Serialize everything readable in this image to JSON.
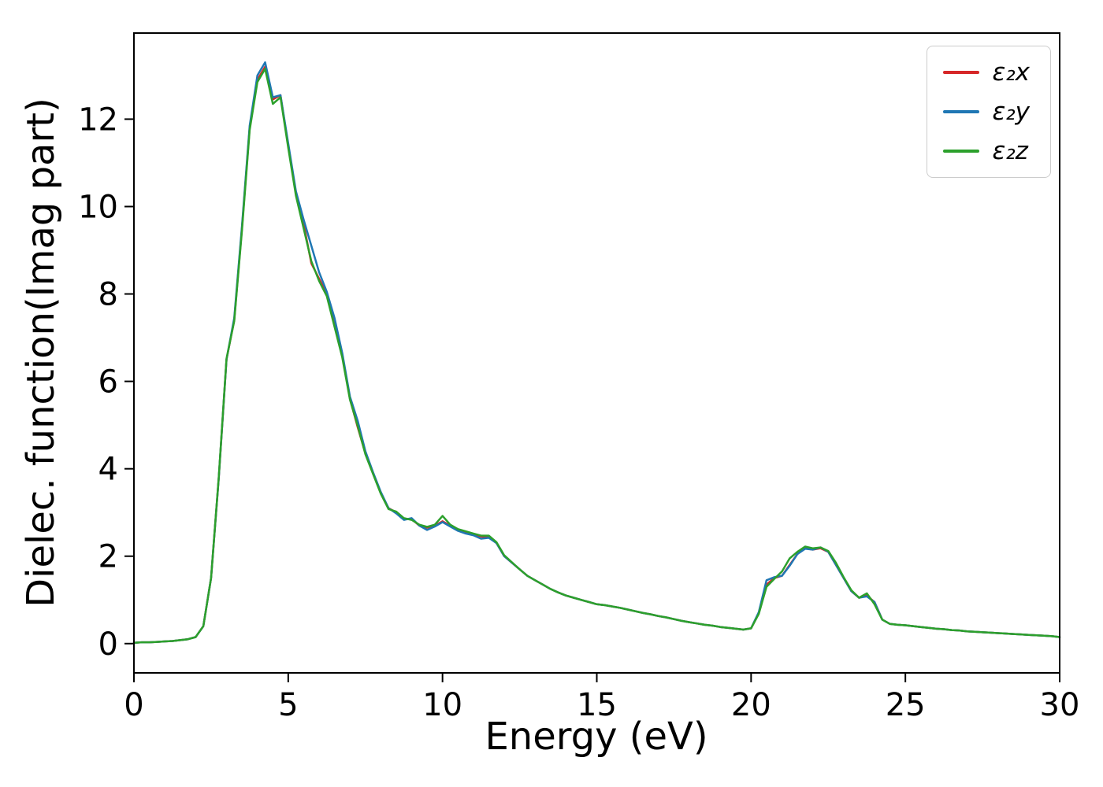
{
  "figure": {
    "background": "#ffffff",
    "spine_color": "#000000",
    "tick_color": "#000000"
  },
  "legend": {
    "position": "upper right",
    "border_color": "#cccccc"
  },
  "chart_data": {
    "type": "line",
    "title": "",
    "xlabel": "Energy (eV)",
    "ylabel": "Dielec. function(Imag part)",
    "xlim": [
      0,
      30
    ],
    "ylim": [
      -0.67,
      13.97
    ],
    "xticks": [
      0,
      5,
      10,
      15,
      20,
      25,
      30
    ],
    "yticks": [
      0,
      2,
      4,
      6,
      8,
      10,
      12
    ],
    "grid": false,
    "legend_position": "upper right",
    "x": [
      0,
      0.25,
      0.5,
      0.75,
      1,
      1.25,
      1.5,
      1.75,
      2,
      2.25,
      2.5,
      2.75,
      3,
      3.25,
      3.5,
      3.75,
      4,
      4.25,
      4.5,
      4.75,
      5,
      5.25,
      5.5,
      5.75,
      6,
      6.25,
      6.5,
      6.75,
      7,
      7.25,
      7.5,
      7.75,
      8,
      8.25,
      8.5,
      8.75,
      9,
      9.25,
      9.5,
      9.75,
      10,
      10.25,
      10.5,
      10.75,
      11,
      11.25,
      11.5,
      11.75,
      12,
      12.25,
      12.5,
      12.75,
      13,
      13.25,
      13.5,
      13.75,
      14,
      14.25,
      14.5,
      14.75,
      15,
      15.25,
      15.5,
      15.75,
      16,
      16.25,
      16.5,
      16.75,
      17,
      17.25,
      17.5,
      17.75,
      18,
      18.25,
      18.5,
      18.75,
      19,
      19.25,
      19.5,
      19.75,
      20,
      20.25,
      20.5,
      20.75,
      21,
      21.25,
      21.5,
      21.75,
      22,
      22.25,
      22.5,
      22.75,
      23,
      23.25,
      23.5,
      23.75,
      24,
      24.25,
      24.5,
      24.75,
      25,
      25.25,
      25.5,
      25.75,
      26,
      26.25,
      26.5,
      26.75,
      27,
      27.25,
      27.5,
      27.75,
      28,
      28.25,
      28.5,
      28.75,
      29,
      29.25,
      29.5,
      29.75,
      30
    ],
    "series": [
      {
        "name": "ε₂x",
        "color": "#d62728",
        "values": [
          0.02,
          0.03,
          0.03,
          0.04,
          0.05,
          0.06,
          0.08,
          0.1,
          0.15,
          0.4,
          1.5,
          3.8,
          6.5,
          7.4,
          9.5,
          11.8,
          12.9,
          13.2,
          12.45,
          12.55,
          11.4,
          10.3,
          9.6,
          8.7,
          8.35,
          8.0,
          7.4,
          6.6,
          5.6,
          4.95,
          4.35,
          3.9,
          3.45,
          3.1,
          3.0,
          2.85,
          2.85,
          2.7,
          2.65,
          2.7,
          2.8,
          2.7,
          2.6,
          2.55,
          2.5,
          2.45,
          2.45,
          2.3,
          2.0,
          1.85,
          1.7,
          1.55,
          1.45,
          1.35,
          1.25,
          1.17,
          1.1,
          1.05,
          1.0,
          0.95,
          0.9,
          0.88,
          0.85,
          0.82,
          0.78,
          0.74,
          0.7,
          0.67,
          0.63,
          0.6,
          0.56,
          0.52,
          0.49,
          0.46,
          0.43,
          0.41,
          0.38,
          0.36,
          0.34,
          0.32,
          0.35,
          0.7,
          1.35,
          1.5,
          1.55,
          1.8,
          2.05,
          2.18,
          2.15,
          2.18,
          2.1,
          1.8,
          1.5,
          1.2,
          1.05,
          1.1,
          0.95,
          0.55,
          0.45,
          0.43,
          0.42,
          0.4,
          0.38,
          0.36,
          0.34,
          0.33,
          0.31,
          0.3,
          0.28,
          0.27,
          0.26,
          0.25,
          0.24,
          0.23,
          0.22,
          0.21,
          0.2,
          0.19,
          0.18,
          0.17,
          0.15
        ]
      },
      {
        "name": "ε₂y",
        "color": "#1f77b4",
        "values": [
          0.02,
          0.03,
          0.03,
          0.04,
          0.05,
          0.06,
          0.08,
          0.1,
          0.15,
          0.4,
          1.5,
          3.8,
          6.5,
          7.45,
          9.55,
          11.85,
          13.0,
          13.3,
          12.5,
          12.55,
          11.45,
          10.35,
          9.7,
          9.1,
          8.5,
          8.05,
          7.45,
          6.65,
          5.65,
          5.1,
          4.4,
          3.92,
          3.47,
          3.1,
          2.98,
          2.83,
          2.87,
          2.7,
          2.6,
          2.68,
          2.78,
          2.68,
          2.58,
          2.52,
          2.48,
          2.4,
          2.42,
          2.3,
          2.0,
          1.85,
          1.7,
          1.55,
          1.45,
          1.35,
          1.25,
          1.17,
          1.1,
          1.05,
          1.0,
          0.95,
          0.9,
          0.88,
          0.85,
          0.82,
          0.78,
          0.74,
          0.7,
          0.67,
          0.63,
          0.6,
          0.56,
          0.52,
          0.49,
          0.46,
          0.43,
          0.41,
          0.38,
          0.36,
          0.34,
          0.32,
          0.35,
          0.72,
          1.45,
          1.52,
          1.55,
          1.78,
          2.05,
          2.17,
          2.15,
          2.2,
          2.1,
          1.8,
          1.5,
          1.2,
          1.05,
          1.08,
          0.95,
          0.55,
          0.45,
          0.43,
          0.42,
          0.4,
          0.38,
          0.36,
          0.34,
          0.33,
          0.31,
          0.3,
          0.28,
          0.27,
          0.26,
          0.25,
          0.24,
          0.23,
          0.22,
          0.21,
          0.2,
          0.19,
          0.18,
          0.17,
          0.15
        ]
      },
      {
        "name": "ε₂z",
        "color": "#2ca02c",
        "values": [
          0.02,
          0.03,
          0.03,
          0.04,
          0.05,
          0.06,
          0.08,
          0.1,
          0.15,
          0.4,
          1.5,
          3.82,
          6.52,
          7.38,
          9.45,
          11.75,
          12.85,
          13.15,
          12.35,
          12.5,
          11.35,
          10.25,
          9.5,
          8.75,
          8.3,
          7.95,
          7.25,
          6.55,
          5.58,
          4.98,
          4.33,
          3.88,
          3.43,
          3.08,
          3.02,
          2.87,
          2.83,
          2.72,
          2.67,
          2.72,
          2.92,
          2.72,
          2.62,
          2.57,
          2.52,
          2.47,
          2.47,
          2.32,
          2.02,
          1.86,
          1.7,
          1.55,
          1.45,
          1.35,
          1.25,
          1.17,
          1.1,
          1.05,
          1.0,
          0.95,
          0.9,
          0.88,
          0.85,
          0.82,
          0.78,
          0.74,
          0.7,
          0.67,
          0.63,
          0.6,
          0.56,
          0.52,
          0.49,
          0.46,
          0.43,
          0.41,
          0.38,
          0.36,
          0.34,
          0.32,
          0.35,
          0.68,
          1.3,
          1.48,
          1.65,
          1.95,
          2.1,
          2.22,
          2.18,
          2.2,
          2.12,
          1.85,
          1.52,
          1.22,
          1.05,
          1.15,
          0.9,
          0.55,
          0.45,
          0.43,
          0.42,
          0.4,
          0.38,
          0.36,
          0.34,
          0.33,
          0.31,
          0.3,
          0.28,
          0.27,
          0.26,
          0.25,
          0.24,
          0.23,
          0.22,
          0.21,
          0.2,
          0.19,
          0.18,
          0.17,
          0.15
        ]
      }
    ]
  }
}
